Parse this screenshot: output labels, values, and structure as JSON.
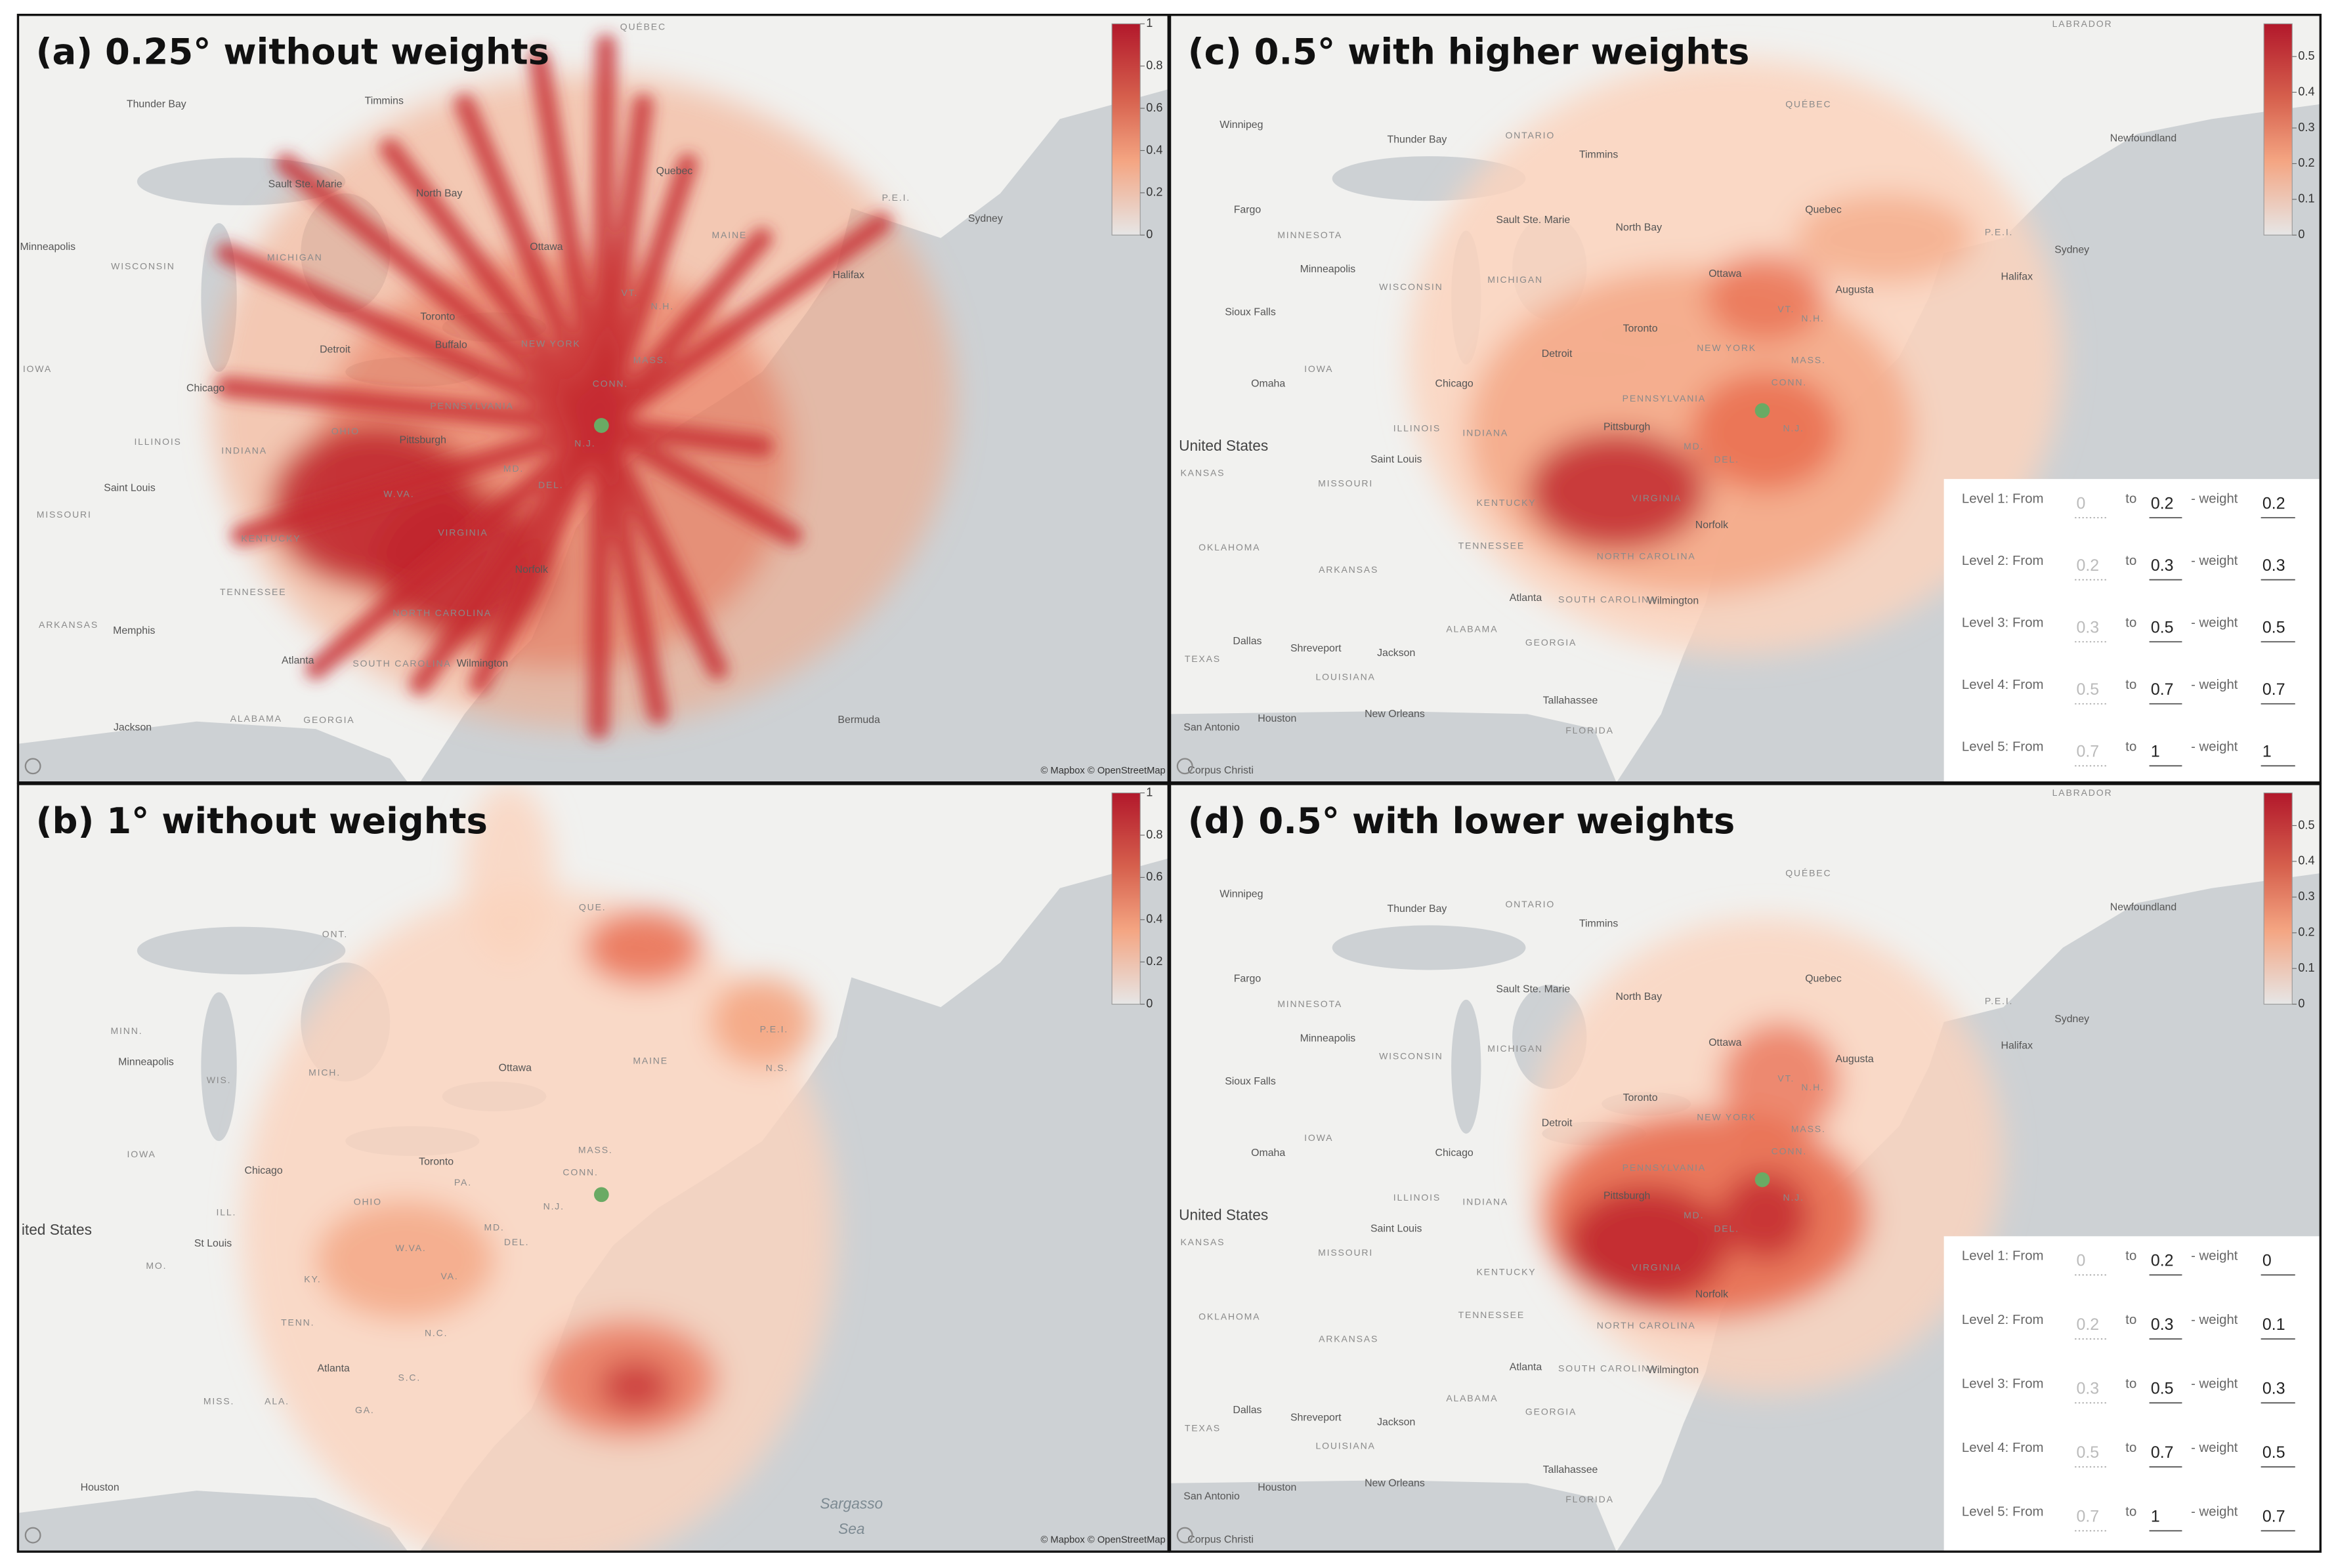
{
  "panels": [
    {
      "title": "(a) 0.25° without weights",
      "colorbar_ticks": [
        "1",
        "0.8",
        "0.6",
        "0.4",
        "0.2",
        "0"
      ],
      "map_labels": [
        "QUÉBEC",
        "Timmins",
        "Thunder Bay",
        "Sault Ste. Marie",
        "North Bay",
        "Ottawa",
        "Quebec",
        "MAINE",
        "Halifax",
        "Sydney",
        "P.E.I.",
        "Minneapolis",
        "WISCONSIN",
        "MICHIGAN",
        "Toronto",
        "Buffalo",
        "NEW YORK",
        "Detroit",
        "Chicago",
        "IOWA",
        "ILLINOIS",
        "INDIANA",
        "OHIO",
        "PENNSYLVANIA",
        "Pittsburgh",
        "Saint Louis",
        "MISSOURI",
        "KENTUCKY",
        "W.VA.",
        "VIRGINIA",
        "Norfolk",
        "TENNESSEE",
        "NORTH CAROLINA",
        "SOUTH CAROLINA",
        "Wilmington",
        "Atlanta",
        "Memphis",
        "ARKANSAS",
        "Jackson",
        "ALABAMA",
        "GEORGIA",
        "Bermuda",
        "N.J.",
        "MD.",
        "DEL.",
        "CONN.",
        "MASS.",
        "VT.",
        "N.H."
      ],
      "attribution": "© Mapbox © OpenStreetMap"
    },
    {
      "title": "(b) 1° without weights",
      "colorbar_ticks": [
        "1",
        "0.8",
        "0.6",
        "0.4",
        "0.2",
        "0"
      ],
      "map_labels": [
        "ONT.",
        "QUE.",
        "MINN.",
        "Minneapolis",
        "WIS.",
        "MICH.",
        "Ottawa",
        "MAINE",
        "P.E.I.",
        "N.S.",
        "IOWA",
        "Toronto",
        "Chicago",
        "MASS.",
        "CONN.",
        "PA.",
        "OHIO",
        "ILL.",
        "N.J.",
        "MD.",
        "DEL.",
        "W.VA.",
        "St Louis",
        "ited States",
        "MO.",
        "KY.",
        "VA.",
        "TENN.",
        "N.C.",
        "Atlanta",
        "S.C.",
        "MISS.",
        "ALA.",
        "GA.",
        "Houston",
        "Sargasso",
        "Sea"
      ],
      "attribution": "© Mapbox © OpenStreetMap"
    },
    {
      "title": "(c) 0.5° with higher weights",
      "colorbar_ticks": [
        "0.5",
        "0.4",
        "0.3",
        "0.2",
        "0.1",
        "0"
      ],
      "map_labels": [
        "TENNESSEE",
        "OKLAHOMA",
        "ARKANSAS",
        "KANSAS",
        "MISSOURI",
        "United States",
        "Omaha",
        "IOWA",
        "Sioux Falls",
        "Minneapolis",
        "WISCONSIN",
        "MINNESOTA",
        "Fargo",
        "Winnipeg",
        "Thunder Bay",
        "ONTARIO",
        "Timmins",
        "Sault Ste. Marie",
        "North Bay",
        "QUÉBEC",
        "Newfoundland",
        "LABRADOR",
        "Quebec",
        "Ottawa",
        "MICHIGAN",
        "Toronto",
        "Detroit",
        "Chicago",
        "ILLINOIS",
        "INDIANA",
        "Saint Louis",
        "KENTUCKY",
        "PENNSYLVANIA",
        "Pittsburgh",
        "NEW YORK",
        "Atlanta",
        "Dallas",
        "Shreveport",
        "Jackson",
        "TEXAS",
        "ALABAMA",
        "GEORGIA",
        "LOUISIANA",
        "Tallahassee",
        "New Orleans",
        "Houston",
        "San Antonio",
        "Corpus Christi",
        "FLORIDA",
        "Wilmington",
        "Norfolk",
        "VIRGINIA",
        "NORTH CAROLINA",
        "SOUTH CAROLINA",
        "N.J.",
        "MD.",
        "DEL.",
        "CONN.",
        "MASS.",
        "VT.",
        "N.H.",
        "P.E.I.",
        "Sydney",
        "Halifax",
        "Augusta"
      ],
      "weights": {
        "to_label": "to",
        "weight_label": "- weight",
        "rows": [
          {
            "level": "Level 1: From",
            "from": "0",
            "to": "0.2",
            "weight": "0.2"
          },
          {
            "level": "Level 2: From",
            "from": "0.2",
            "to": "0.3",
            "weight": "0.3"
          },
          {
            "level": "Level 3: From",
            "from": "0.3",
            "to": "0.5",
            "weight": "0.5"
          },
          {
            "level": "Level 4: From",
            "from": "0.5",
            "to": "0.7",
            "weight": "0.7"
          },
          {
            "level": "Level 5: From",
            "from": "0.7",
            "to": "1",
            "weight": "1"
          }
        ]
      }
    },
    {
      "title": "(d) 0.5° with lower weights",
      "colorbar_ticks": [
        "0.5",
        "0.4",
        "0.3",
        "0.2",
        "0.1",
        "0"
      ],
      "map_labels": [
        "TENNESSEE",
        "OKLAHOMA",
        "ARKANSAS",
        "KANSAS",
        "MISSOURI",
        "United States",
        "Omaha",
        "IOWA",
        "Sioux Falls",
        "Minneapolis",
        "WISCONSIN",
        "MINNESOTA",
        "Fargo",
        "Winnipeg",
        "Thunder Bay",
        "ONTARIO",
        "Timmins",
        "Sault Ste. Marie",
        "North Bay",
        "QUÉBEC",
        "Newfoundland",
        "LABRADOR",
        "Quebec",
        "Ottawa",
        "MICHIGAN",
        "Toronto",
        "Detroit",
        "Chicago",
        "ILLINOIS",
        "INDIANA",
        "Saint Louis",
        "KENTUCKY",
        "PENNSYLVANIA",
        "Pittsburgh",
        "NEW YORK",
        "Atlanta",
        "Dallas",
        "Shreveport",
        "Jackson",
        "TEXAS",
        "ALABAMA",
        "GEORGIA",
        "LOUISIANA",
        "Tallahassee",
        "New Orleans",
        "Houston",
        "San Antonio",
        "Corpus Christi",
        "FLORIDA",
        "Wilmington",
        "Norfolk",
        "VIRGINIA",
        "NORTH CAROLINA",
        "SOUTH CAROLINA",
        "N.J.",
        "MD.",
        "DEL.",
        "CONN.",
        "MASS.",
        "VT.",
        "N.H.",
        "P.E.I.",
        "Sydney",
        "Halifax",
        "Augusta"
      ],
      "weights": {
        "to_label": "to",
        "weight_label": "- weight",
        "rows": [
          {
            "level": "Level 1: From",
            "from": "0",
            "to": "0.2",
            "weight": "0"
          },
          {
            "level": "Level 2: From",
            "from": "0.2",
            "to": "0.3",
            "weight": "0.1"
          },
          {
            "level": "Level 3: From",
            "from": "0.3",
            "to": "0.5",
            "weight": "0.3"
          },
          {
            "level": "Level 4: From",
            "from": "0.5",
            "to": "0.7",
            "weight": "0.5"
          },
          {
            "level": "Level 5: From",
            "from": "0.7",
            "to": "1",
            "weight": "0.7"
          }
        ]
      }
    }
  ]
}
